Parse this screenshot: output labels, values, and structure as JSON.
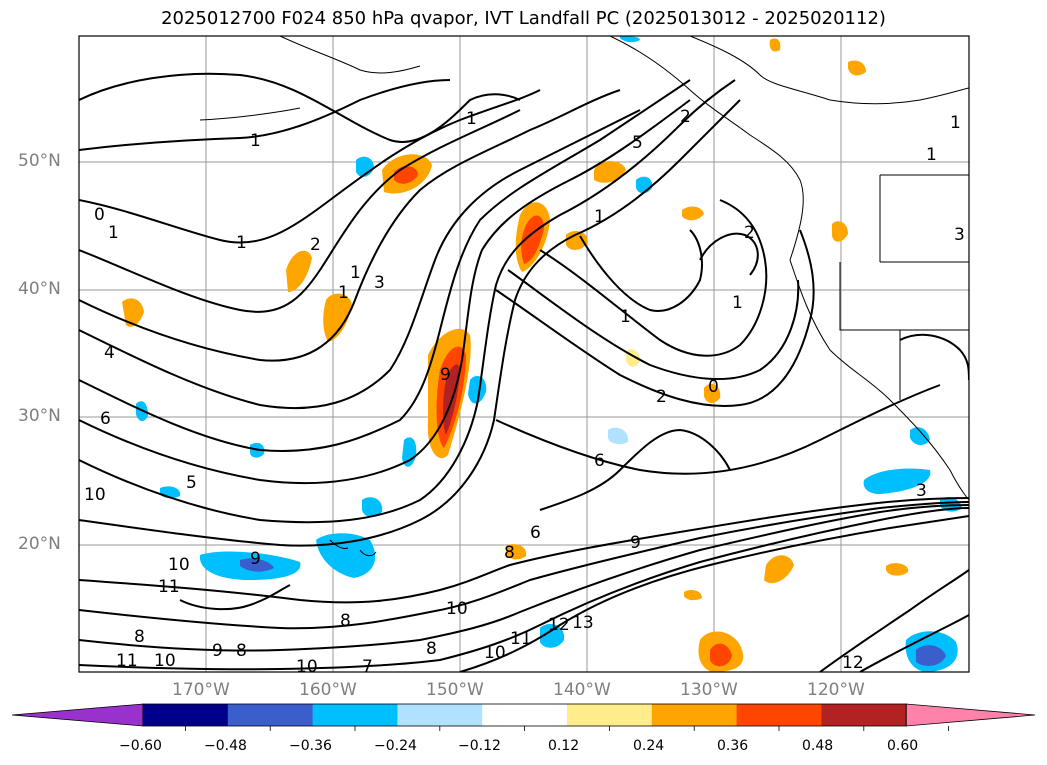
{
  "title": "2025012700 F024 850 hPa qvapor, IVT Landfall PC (2025013012 - 2025020112)",
  "lat_labels": [
    "50°N",
    "40°N",
    "30°N",
    "20°N"
  ],
  "lon_labels": [
    "170°W",
    "160°W",
    "150°W",
    "140°W",
    "130°W",
    "120°W"
  ],
  "colorbar": {
    "ticks": [
      "−0.60",
      "−0.48",
      "−0.36",
      "−0.24",
      "−0.12",
      "0.12",
      "0.24",
      "0.36",
      "0.48",
      "0.60"
    ],
    "colors": [
      "#9932cc",
      "#00008b",
      "#3a5fcd",
      "#00bfff",
      "#b0e2ff",
      "#ffffff",
      "#ffec8b",
      "#ffa500",
      "#ff4500",
      "#b22222",
      "#ff82ab"
    ]
  },
  "contour_labels": [
    {
      "t": "1"
    },
    {
      "t": "1"
    },
    {
      "t": "5"
    },
    {
      "t": "1"
    },
    {
      "t": "1"
    },
    {
      "t": "0"
    },
    {
      "t": "1"
    },
    {
      "t": "2"
    },
    {
      "t": "1"
    },
    {
      "t": "3"
    },
    {
      "t": "1"
    },
    {
      "t": "2"
    },
    {
      "t": "1"
    },
    {
      "t": "1"
    },
    {
      "t": "1"
    },
    {
      "t": "4"
    },
    {
      "t": "6"
    },
    {
      "t": "2"
    },
    {
      "t": "3"
    },
    {
      "t": "0"
    },
    {
      "t": "6"
    },
    {
      "t": "5"
    },
    {
      "t": "10"
    },
    {
      "t": "6"
    },
    {
      "t": "9"
    },
    {
      "t": "8"
    },
    {
      "t": "10"
    },
    {
      "t": "9"
    },
    {
      "t": "11"
    },
    {
      "t": "8"
    },
    {
      "t": "10"
    },
    {
      "t": "9"
    },
    {
      "t": "8"
    },
    {
      "t": "11"
    },
    {
      "t": "10"
    },
    {
      "t": "10"
    },
    {
      "t": "8"
    },
    {
      "t": "7"
    },
    {
      "t": "10"
    },
    {
      "t": "11"
    },
    {
      "t": "12"
    },
    {
      "t": "13"
    },
    {
      "t": "12"
    },
    {
      "t": "3"
    },
    {
      "t": "8"
    },
    {
      "t": "2"
    },
    {
      "t": "1"
    },
    {
      "t": "9"
    }
  ]
}
